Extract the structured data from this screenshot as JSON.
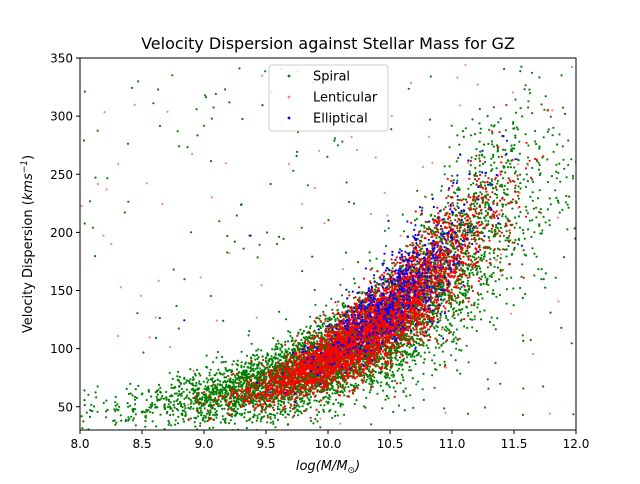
{
  "chart_data": {
    "type": "scatter",
    "title": "Velocity Dispersion against Stellar Mass for GZ",
    "xlabel_main": "log(M/M",
    "xlabel_sub": "⊙",
    "xlabel_end": ")",
    "ylabel_main": "Velocity Dispersion (",
    "ylabel_unit": "kms",
    "ylabel_exp": "−1",
    "ylabel_end": ")",
    "xlim": [
      8.0,
      12.0
    ],
    "ylim": [
      30,
      350
    ],
    "xticks": [
      "8.0",
      "8.5",
      "9.0",
      "9.5",
      "10.0",
      "10.5",
      "11.0",
      "11.5",
      "12.0"
    ],
    "yticks": [
      "50",
      "100",
      "150",
      "200",
      "250",
      "300",
      "350"
    ],
    "grid": false,
    "legend_position": "top-center",
    "series": [
      {
        "name": "Spiral",
        "color": "#008000",
        "marker": "dot",
        "trend": [
          [
            8.0,
            48
          ],
          [
            8.5,
            50
          ],
          [
            9.0,
            58
          ],
          [
            9.5,
            70
          ],
          [
            10.0,
            90
          ],
          [
            10.5,
            120
          ],
          [
            11.0,
            170
          ],
          [
            11.5,
            235
          ]
        ]
      },
      {
        "name": "Lenticular",
        "color": "#ff0000",
        "marker": "dot",
        "trend": [
          [
            8.5,
            45
          ],
          [
            9.0,
            52
          ],
          [
            9.5,
            65
          ],
          [
            10.0,
            92
          ],
          [
            10.5,
            128
          ],
          [
            11.0,
            180
          ],
          [
            11.5,
            240
          ]
        ]
      },
      {
        "name": "Elliptical",
        "color": "#0000ff",
        "marker": "dot",
        "trend": [
          [
            9.5,
            70
          ],
          [
            10.0,
            100
          ],
          [
            10.5,
            140
          ],
          [
            11.0,
            190
          ],
          [
            11.5,
            250
          ]
        ]
      }
    ]
  }
}
